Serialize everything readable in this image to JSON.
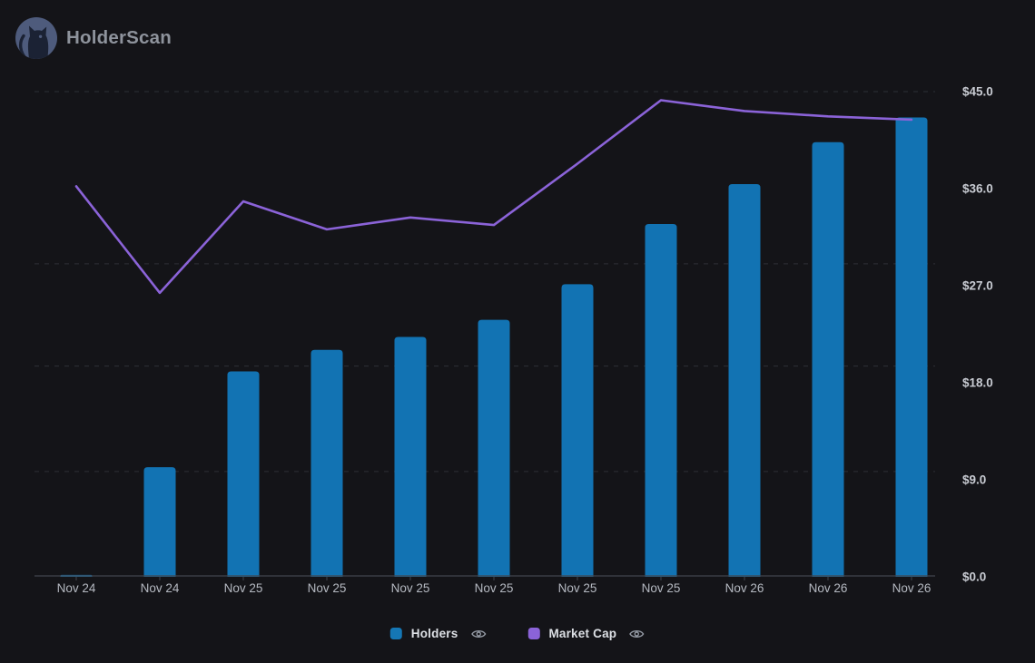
{
  "app": {
    "brand": "HolderScan"
  },
  "legend": {
    "items": [
      {
        "label": "Holders",
        "color": "#1577b5",
        "type": "bar"
      },
      {
        "label": "Market Cap",
        "color": "#8b63d8",
        "type": "line"
      }
    ]
  },
  "chart_data": {
    "type": "bar+line combo",
    "title": "",
    "categories": [
      "Nov 24",
      "Nov 24",
      "Nov 25",
      "Nov 25",
      "Nov 25",
      "Nov 25",
      "Nov 25",
      "Nov 25",
      "Nov 26",
      "Nov 26",
      "Nov 26"
    ],
    "series": [
      {
        "name": "Holders",
        "type": "bar",
        "color": "#1273b3",
        "note": "plotted on hidden left axis; values below are right-axis dollar equivalents read from pixels",
        "values": [
          0.1,
          10.1,
          19.0,
          21.0,
          22.2,
          23.8,
          27.1,
          32.7,
          36.4,
          40.3,
          42.6
        ]
      },
      {
        "name": "Market Cap",
        "type": "line",
        "color": "#8b63d8",
        "values": [
          36.2,
          26.3,
          34.8,
          32.2,
          33.3,
          32.6,
          38.3,
          44.2,
          43.2,
          42.7,
          42.4
        ]
      }
    ],
    "y_axis": {
      "side": "right",
      "tick_labels": [
        "$45.0",
        "$36.0",
        "$27.0",
        "$18.0",
        "$9.0",
        "$0.0"
      ],
      "tick_values": [
        45,
        36,
        27,
        18,
        9,
        0
      ],
      "min": 0,
      "max": 45
    },
    "gridline_values": [
      45,
      29,
      19.5,
      9.7
    ],
    "grid": "dashed horizontal lines",
    "legend_position": "bottom-center"
  },
  "colors": {
    "background": "#141418",
    "bar": "#1273b3",
    "line": "#8b63d8",
    "gridline": "#2d2f36",
    "axis": "#41454d",
    "y_label": "#c9ccd3",
    "x_label": "#b5b9c1",
    "brand_title": "#8e939c",
    "logo_circle": "#4e5b7c",
    "logo_cat": "#1b2234",
    "legend_text": "#dde0e5",
    "eye_icon": "#949aa4"
  }
}
